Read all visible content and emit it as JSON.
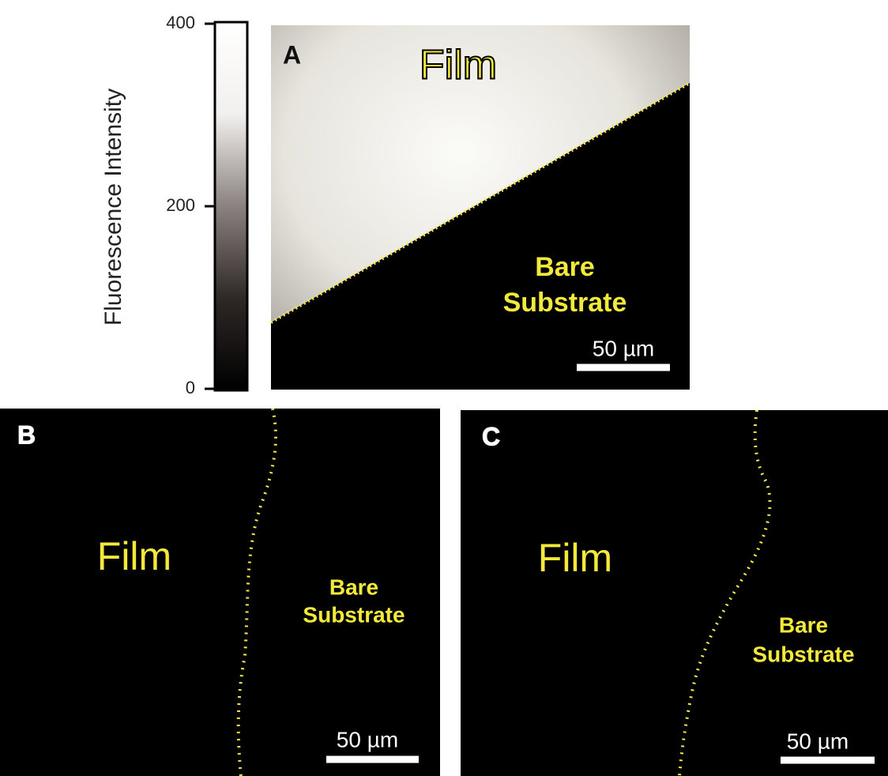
{
  "colorbar": {
    "label": "Fluorescence Intensity",
    "range": [
      0,
      400
    ],
    "ticks": [
      0,
      200,
      400
    ]
  },
  "panels": [
    {
      "label": "A",
      "film": "Film",
      "substrate": [
        "Bare",
        "Substrate"
      ],
      "scale_bar": "50 µm"
    },
    {
      "label": "B",
      "film": "Film",
      "substrate": [
        "Bare",
        "Substrate"
      ],
      "scale_bar": "50 µm"
    },
    {
      "label": "C",
      "film": "Film",
      "substrate": [
        "Bare",
        "Substrate"
      ],
      "scale_bar": "50 µm"
    }
  ]
}
